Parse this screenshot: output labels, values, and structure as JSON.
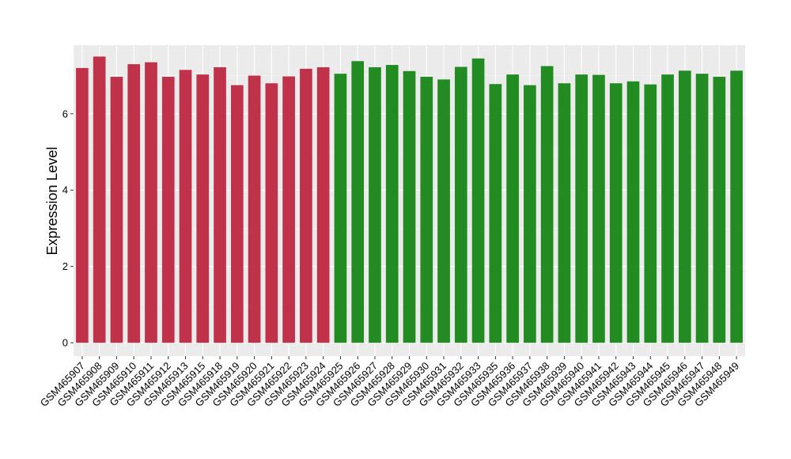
{
  "chart_data": {
    "type": "bar",
    "ylabel": "Expression Level",
    "xlabel": "",
    "ylim": [
      -0.35,
      7.8
    ],
    "yticks": [
      0,
      2,
      4,
      6
    ],
    "grid": true,
    "panel_background": "#ebebeb",
    "colors": {
      "group_1": "#c0314a",
      "group_2": "#228b22"
    },
    "categories": [
      "GSM465907",
      "GSM465908",
      "GSM465909",
      "GSM465910",
      "GSM465911",
      "GSM465912",
      "GSM465913",
      "GSM465915",
      "GSM465918",
      "GSM465919",
      "GSM465920",
      "GSM465921",
      "GSM465922",
      "GSM465923",
      "GSM465924",
      "GSM465925",
      "GSM465926",
      "GSM465927",
      "GSM465928",
      "GSM465929",
      "GSM465930",
      "GSM465931",
      "GSM465932",
      "GSM465933",
      "GSM465935",
      "GSM465936",
      "GSM465937",
      "GSM465938",
      "GSM465939",
      "GSM465940",
      "GSM465941",
      "GSM465942",
      "GSM465943",
      "GSM465944",
      "GSM465945",
      "GSM465946",
      "GSM465947",
      "GSM465948",
      "GSM465949"
    ],
    "values": [
      7.2,
      7.5,
      6.97,
      7.3,
      7.35,
      6.97,
      7.15,
      7.03,
      7.22,
      6.75,
      7.0,
      6.8,
      6.98,
      7.18,
      7.22,
      7.05,
      7.38,
      7.22,
      7.28,
      7.12,
      6.97,
      6.9,
      7.23,
      7.45,
      6.78,
      7.03,
      6.75,
      7.25,
      6.8,
      7.03,
      7.02,
      6.8,
      6.85,
      6.77,
      7.03,
      7.13,
      7.05,
      6.97,
      7.13
    ],
    "groups": [
      1,
      1,
      1,
      1,
      1,
      1,
      1,
      1,
      1,
      1,
      1,
      1,
      1,
      1,
      1,
      2,
      2,
      2,
      2,
      2,
      2,
      2,
      2,
      2,
      2,
      2,
      2,
      2,
      2,
      2,
      2,
      2,
      2,
      2,
      2,
      2,
      2,
      2,
      2
    ]
  }
}
